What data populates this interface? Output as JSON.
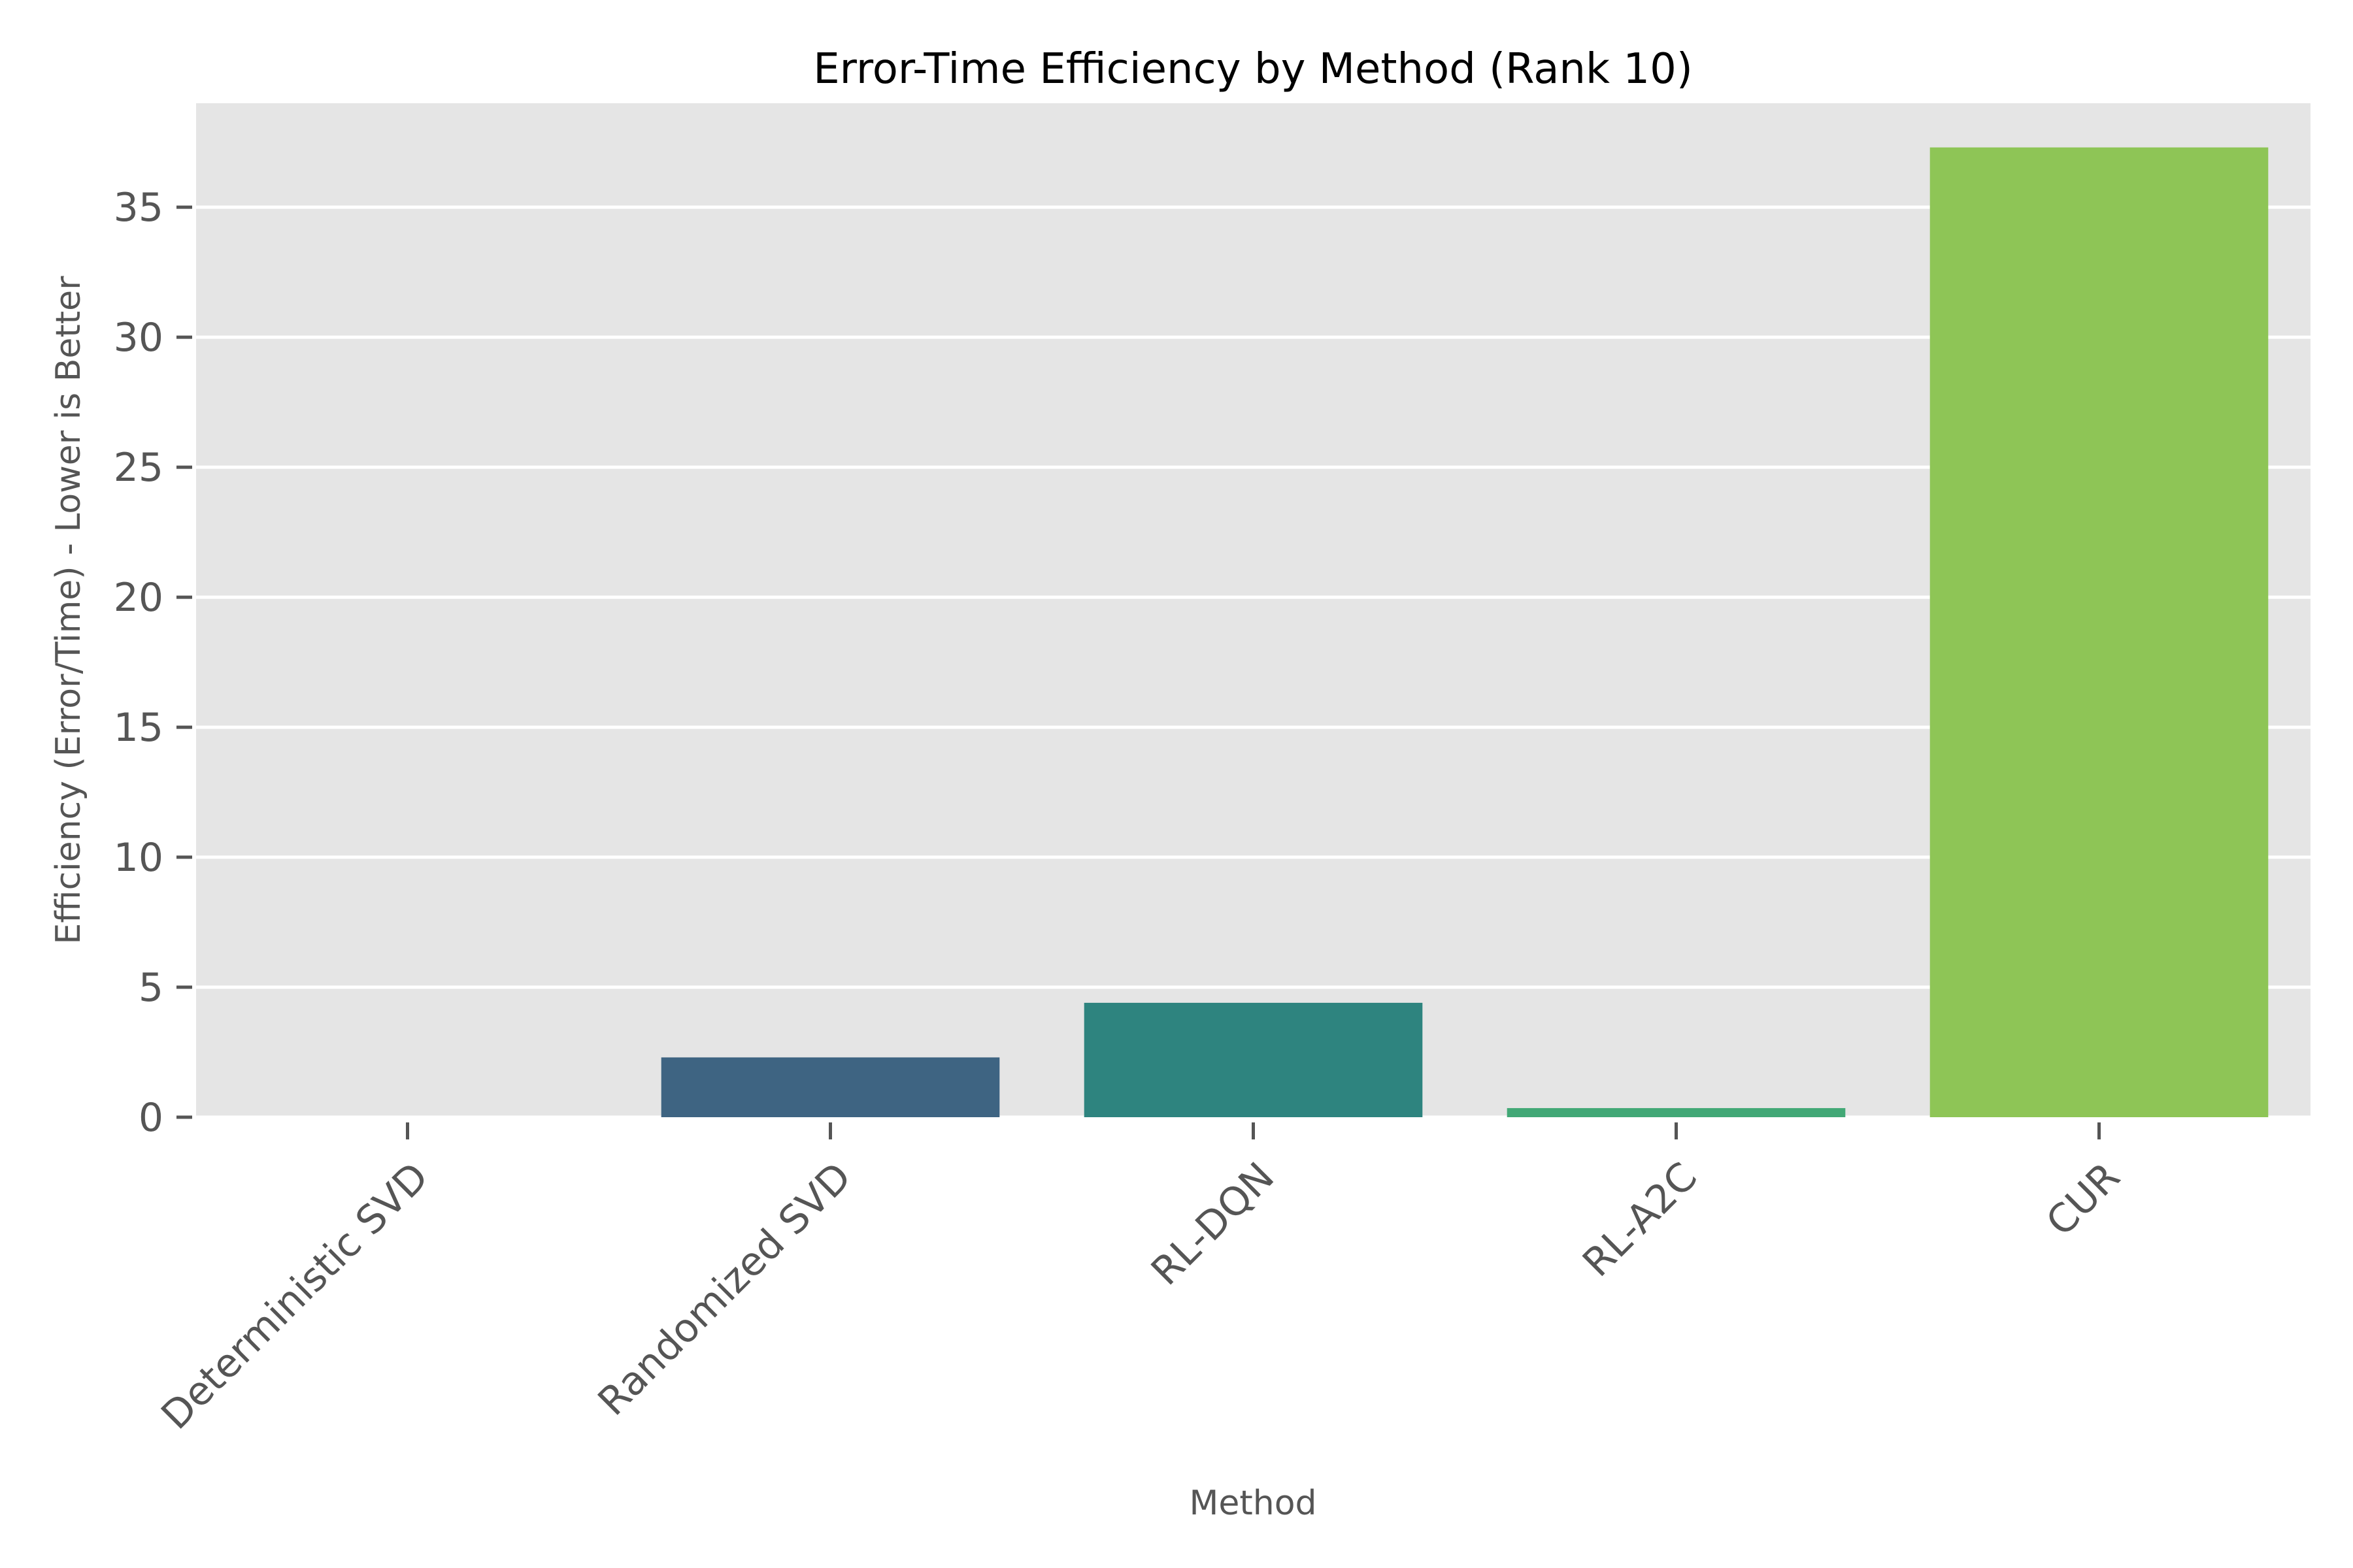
{
  "chart_data": {
    "type": "bar",
    "title": "Error-Time Efficiency by Method (Rank 10)",
    "xlabel": "Method",
    "ylabel": "Efficiency (Error/Time) - Lower is Better",
    "categories": [
      "Deterministic SVD",
      "Randomized SVD",
      "RL-DQN",
      "RL-A2C",
      "CUR"
    ],
    "values": [
      0.0,
      2.3,
      4.4,
      0.35,
      37.3
    ],
    "colors": [
      "#440154",
      "#3e6482",
      "#2e847f",
      "#42a876",
      "#8ec556"
    ],
    "ylim": [
      0,
      39
    ],
    "yticks": [
      0,
      5,
      10,
      15,
      20,
      25,
      30,
      35
    ],
    "grid": true,
    "background": "#e5e5e5",
    "grid_color": "#ffffff"
  }
}
